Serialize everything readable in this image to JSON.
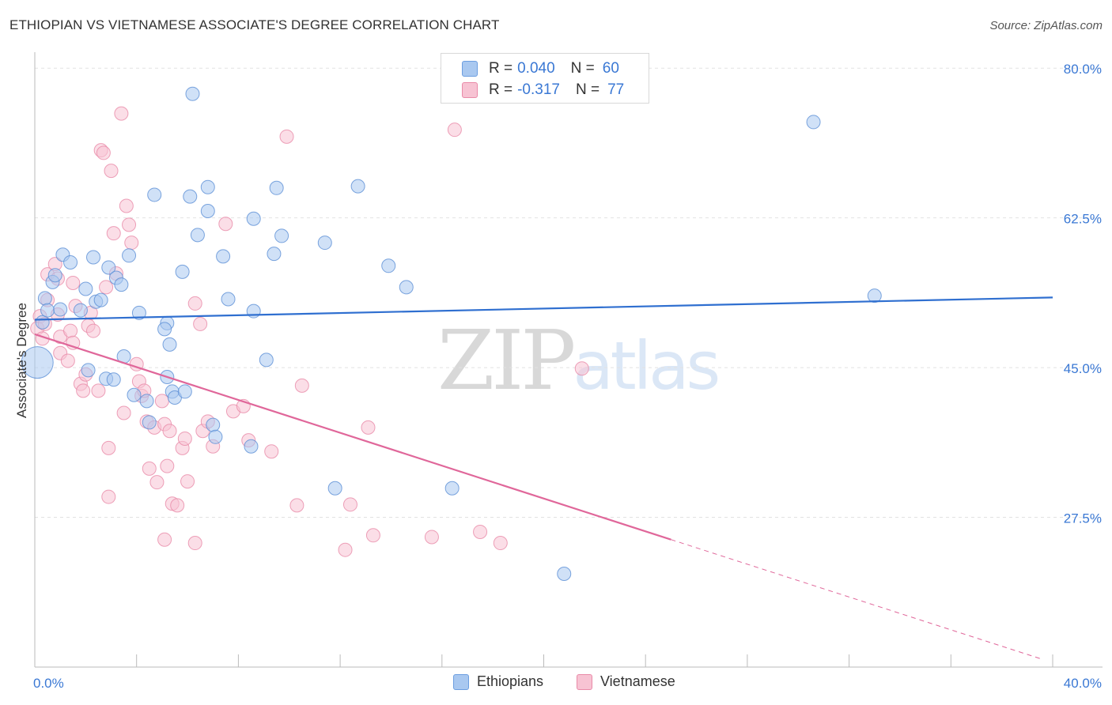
{
  "header": {
    "title": "ETHIOPIAN VS VIETNAMESE ASSOCIATE'S DEGREE CORRELATION CHART",
    "source": "Source: ZipAtlas.com"
  },
  "legend": {
    "r_label": "R =",
    "n_label": "N =",
    "rows": [
      {
        "r": "0.040",
        "n": "60",
        "color": "#a9c8f0",
        "border": "#6c9ee0"
      },
      {
        "r": "-0.317",
        "n": "77",
        "color": "#f7c3d3",
        "border": "#e98aa8"
      }
    ]
  },
  "watermark": {
    "zip": "ZIP",
    "atlas": "atlas"
  },
  "colors": {
    "ethiopians_fill": "#a9c8f0",
    "ethiopians_stroke": "#5b8fd6",
    "ethiopians_line": "#2f6fd0",
    "vietnamese_fill": "#f7c3d3",
    "vietnamese_stroke": "#e88aa8",
    "vietnamese_line": "#e0679a",
    "tick_label": "#3a78d4"
  },
  "chart_data": {
    "type": "scatter",
    "title": "ETHIOPIAN VS VIETNAMESE ASSOCIATE'S DEGREE CORRELATION CHART",
    "xlabel": "",
    "ylabel": "Associate's Degree",
    "xlim": [
      0,
      40
    ],
    "ylim": [
      10,
      81.5
    ],
    "x_tick_labels": [
      "0.0%",
      "40.0%"
    ],
    "y_ticks": [
      27.5,
      45.0,
      62.5,
      80.0
    ],
    "y_tick_labels": [
      "27.5%",
      "45.0%",
      "62.5%",
      "80.0%"
    ],
    "grid": true,
    "legend_position": "top-center",
    "series": [
      {
        "name": "Ethiopians",
        "r": 0.04,
        "n": 60,
        "trend": {
          "x": [
            0,
            40
          ],
          "y": [
            50.6,
            53.2
          ]
        },
        "points": [
          [
            0.1,
            45.6
          ],
          [
            0.3,
            50.3
          ],
          [
            0.4,
            53.1
          ],
          [
            0.5,
            51.7
          ],
          [
            0.7,
            55.0
          ],
          [
            0.8,
            55.8
          ],
          [
            1.1,
            58.2
          ],
          [
            1.4,
            57.3
          ],
          [
            1.0,
            51.8
          ],
          [
            1.8,
            51.7
          ],
          [
            2.0,
            54.2
          ],
          [
            2.3,
            57.9
          ],
          [
            2.4,
            52.7
          ],
          [
            2.6,
            52.9
          ],
          [
            2.9,
            56.7
          ],
          [
            3.2,
            55.5
          ],
          [
            3.4,
            54.7
          ],
          [
            3.7,
            58.1
          ],
          [
            4.1,
            51.4
          ],
          [
            3.5,
            46.3
          ],
          [
            2.1,
            44.7
          ],
          [
            2.8,
            43.7
          ],
          [
            3.1,
            43.6
          ],
          [
            3.9,
            41.8
          ],
          [
            4.4,
            41.1
          ],
          [
            4.5,
            38.6
          ],
          [
            5.2,
            50.2
          ],
          [
            5.1,
            49.5
          ],
          [
            5.3,
            47.7
          ],
          [
            5.2,
            43.9
          ],
          [
            5.4,
            42.2
          ],
          [
            5.5,
            41.5
          ],
          [
            5.9,
            42.2
          ],
          [
            5.8,
            56.2
          ],
          [
            6.4,
            60.5
          ],
          [
            6.8,
            63.3
          ],
          [
            7.4,
            58.0
          ],
          [
            7.6,
            53.0
          ],
          [
            8.6,
            51.6
          ],
          [
            9.4,
            58.3
          ],
          [
            9.7,
            60.4
          ],
          [
            11.4,
            59.6
          ],
          [
            4.7,
            65.2
          ],
          [
            6.1,
            65.0
          ],
          [
            6.8,
            66.1
          ],
          [
            8.6,
            62.4
          ],
          [
            9.5,
            66.0
          ],
          [
            12.7,
            66.2
          ],
          [
            6.2,
            77.0
          ],
          [
            7.0,
            38.3
          ],
          [
            7.1,
            36.9
          ],
          [
            8.5,
            35.8
          ],
          [
            11.8,
            30.9
          ],
          [
            13.9,
            56.9
          ],
          [
            14.6,
            54.4
          ],
          [
            16.4,
            30.9
          ],
          [
            20.8,
            20.9
          ],
          [
            30.6,
            73.7
          ],
          [
            33.0,
            53.4
          ],
          [
            9.1,
            45.9
          ]
        ]
      },
      {
        "name": "Vietnamese",
        "r": -0.317,
        "n": 77,
        "trend": {
          "x": [
            0,
            25.0
          ],
          "y": [
            48.9,
            24.9
          ]
        },
        "trend_dashed": {
          "x": [
            25.0,
            39.5
          ],
          "y": [
            24.9,
            11.0
          ]
        },
        "points": [
          [
            0.1,
            49.6
          ],
          [
            0.2,
            51.0
          ],
          [
            0.3,
            48.4
          ],
          [
            0.4,
            50.1
          ],
          [
            0.5,
            52.9
          ],
          [
            0.5,
            55.9
          ],
          [
            0.8,
            57.1
          ],
          [
            0.9,
            55.4
          ],
          [
            0.9,
            51.2
          ],
          [
            1.0,
            48.6
          ],
          [
            1.0,
            46.7
          ],
          [
            1.3,
            45.8
          ],
          [
            1.4,
            49.3
          ],
          [
            1.5,
            47.9
          ],
          [
            1.6,
            52.2
          ],
          [
            1.8,
            43.1
          ],
          [
            1.9,
            42.3
          ],
          [
            2.0,
            44.2
          ],
          [
            2.1,
            49.9
          ],
          [
            2.2,
            51.4
          ],
          [
            2.3,
            49.3
          ],
          [
            2.5,
            42.3
          ],
          [
            2.6,
            70.4
          ],
          [
            2.7,
            70.1
          ],
          [
            2.8,
            54.4
          ],
          [
            2.9,
            35.6
          ],
          [
            3.0,
            68.0
          ],
          [
            3.1,
            60.7
          ],
          [
            3.2,
            56.0
          ],
          [
            3.4,
            74.7
          ],
          [
            3.5,
            39.7
          ],
          [
            3.6,
            63.9
          ],
          [
            3.7,
            61.7
          ],
          [
            3.8,
            59.6
          ],
          [
            4.0,
            45.4
          ],
          [
            4.1,
            43.4
          ],
          [
            4.2,
            41.7
          ],
          [
            4.3,
            42.3
          ],
          [
            4.4,
            38.7
          ],
          [
            4.5,
            33.2
          ],
          [
            4.7,
            38.0
          ],
          [
            4.8,
            31.6
          ],
          [
            5.0,
            41.1
          ],
          [
            5.1,
            38.4
          ],
          [
            5.2,
            33.5
          ],
          [
            5.3,
            37.6
          ],
          [
            5.4,
            29.1
          ],
          [
            5.6,
            28.9
          ],
          [
            5.8,
            35.6
          ],
          [
            5.9,
            36.7
          ],
          [
            6.0,
            31.7
          ],
          [
            6.3,
            52.5
          ],
          [
            6.5,
            50.1
          ],
          [
            6.6,
            37.6
          ],
          [
            6.8,
            38.7
          ],
          [
            7.0,
            35.8
          ],
          [
            7.5,
            61.8
          ],
          [
            7.8,
            39.9
          ],
          [
            8.2,
            40.5
          ],
          [
            8.4,
            36.5
          ],
          [
            9.3,
            35.2
          ],
          [
            9.9,
            72.0
          ],
          [
            10.3,
            28.9
          ],
          [
            10.5,
            42.9
          ],
          [
            12.2,
            23.7
          ],
          [
            12.4,
            29.0
          ],
          [
            13.1,
            38.0
          ],
          [
            13.3,
            25.4
          ],
          [
            15.6,
            25.2
          ],
          [
            16.5,
            72.8
          ],
          [
            17.5,
            25.8
          ],
          [
            18.3,
            24.5
          ],
          [
            21.5,
            44.9
          ],
          [
            1.5,
            54.9
          ],
          [
            2.9,
            29.9
          ],
          [
            5.1,
            24.9
          ],
          [
            6.3,
            24.5
          ]
        ]
      }
    ]
  }
}
